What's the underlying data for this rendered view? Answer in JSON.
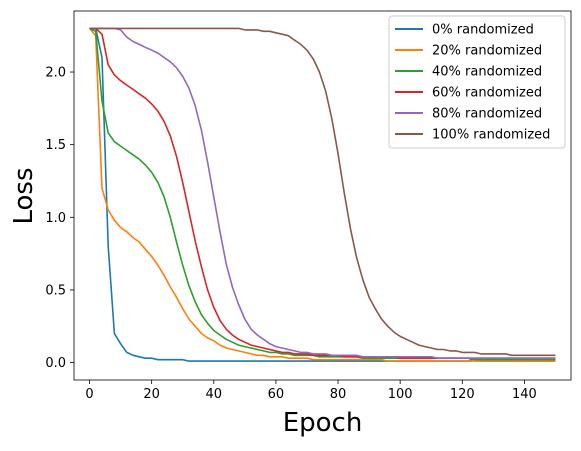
{
  "chart_data": {
    "type": "line",
    "xlabel": "Epoch",
    "ylabel": "Loss",
    "xlim": [
      -5,
      155
    ],
    "ylim": [
      -0.12,
      2.42
    ],
    "x_ticks": [
      0,
      20,
      40,
      60,
      80,
      100,
      120,
      140
    ],
    "y_ticks": [
      0.0,
      0.5,
      1.0,
      1.5,
      2.0
    ],
    "x_tick_labels": [
      "0",
      "20",
      "40",
      "60",
      "80",
      "100",
      "120",
      "140"
    ],
    "y_tick_labels": [
      "0.0",
      "0.5",
      "1.0",
      "1.5",
      "2.0"
    ],
    "grid": false,
    "legend_position": "top-right",
    "x": [
      0,
      2,
      4,
      6,
      8,
      10,
      12,
      14,
      16,
      18,
      20,
      22,
      24,
      26,
      28,
      30,
      32,
      34,
      36,
      38,
      40,
      42,
      44,
      46,
      48,
      50,
      52,
      54,
      56,
      58,
      60,
      62,
      64,
      66,
      68,
      70,
      72,
      74,
      76,
      78,
      80,
      82,
      84,
      86,
      88,
      90,
      92,
      94,
      96,
      98,
      100,
      102,
      104,
      106,
      108,
      110,
      112,
      114,
      116,
      118,
      120,
      122,
      124,
      126,
      128,
      130,
      132,
      134,
      136,
      138,
      140,
      142,
      144,
      146,
      148,
      150
    ],
    "series": [
      {
        "name": "0% randomized",
        "color": "#1f77b4",
        "values": [
          2.3,
          2.3,
          2.1,
          0.8,
          0.2,
          0.13,
          0.07,
          0.05,
          0.04,
          0.03,
          0.03,
          0.02,
          0.02,
          0.02,
          0.02,
          0.02,
          0.01,
          0.01,
          0.01,
          0.01,
          0.01,
          0.01,
          0.01,
          0.01,
          0.01,
          0.01,
          0.01,
          0.01,
          0.01,
          0.01,
          0.01,
          0.01,
          0.01,
          0.01,
          0.01,
          0.01,
          0.01,
          0.01,
          0.01,
          0.01,
          0.01,
          0.01,
          0.01,
          0.01,
          0.01,
          0.01,
          0.01,
          0.01,
          0.01,
          0.01,
          0.01,
          0.01,
          0.01,
          0.01,
          0.01,
          0.01,
          0.01,
          0.01,
          0.01,
          0.01,
          0.01,
          0.01,
          0.03,
          0.01,
          0.01,
          0.01,
          0.01,
          0.01,
          0.01,
          0.01,
          0.01,
          0.01,
          0.01,
          0.01,
          0.01,
          0.01
        ]
      },
      {
        "name": "20% randomized",
        "color": "#ff7f0e",
        "values": [
          2.3,
          2.25,
          1.2,
          1.05,
          0.98,
          0.93,
          0.9,
          0.86,
          0.83,
          0.78,
          0.73,
          0.67,
          0.6,
          0.52,
          0.45,
          0.37,
          0.3,
          0.25,
          0.2,
          0.17,
          0.15,
          0.12,
          0.1,
          0.09,
          0.08,
          0.07,
          0.06,
          0.05,
          0.05,
          0.04,
          0.04,
          0.04,
          0.03,
          0.03,
          0.03,
          0.03,
          0.02,
          0.02,
          0.02,
          0.02,
          0.02,
          0.02,
          0.02,
          0.02,
          0.02,
          0.02,
          0.02,
          0.02,
          0.01,
          0.01,
          0.01,
          0.01,
          0.01,
          0.01,
          0.01,
          0.01,
          0.01,
          0.01,
          0.01,
          0.01,
          0.01,
          0.01,
          0.01,
          0.01,
          0.01,
          0.01,
          0.01,
          0.01,
          0.01,
          0.01,
          0.01,
          0.01,
          0.01,
          0.01,
          0.01,
          0.01
        ]
      },
      {
        "name": "40% randomized",
        "color": "#2ca02c",
        "values": [
          2.3,
          2.28,
          1.8,
          1.58,
          1.52,
          1.49,
          1.46,
          1.43,
          1.4,
          1.36,
          1.31,
          1.24,
          1.14,
          1.0,
          0.83,
          0.67,
          0.53,
          0.42,
          0.33,
          0.27,
          0.22,
          0.19,
          0.16,
          0.14,
          0.12,
          0.11,
          0.1,
          0.09,
          0.08,
          0.07,
          0.07,
          0.06,
          0.06,
          0.05,
          0.05,
          0.05,
          0.05,
          0.04,
          0.04,
          0.04,
          0.04,
          0.04,
          0.04,
          0.04,
          0.03,
          0.03,
          0.03,
          0.03,
          0.03,
          0.03,
          0.03,
          0.03,
          0.03,
          0.03,
          0.03,
          0.03,
          0.03,
          0.03,
          0.03,
          0.03,
          0.03,
          0.03,
          0.02,
          0.02,
          0.02,
          0.02,
          0.02,
          0.02,
          0.02,
          0.02,
          0.02,
          0.02,
          0.02,
          0.02,
          0.02,
          0.02
        ]
      },
      {
        "name": "60% randomized",
        "color": "#d62728",
        "values": [
          2.3,
          2.3,
          2.26,
          2.05,
          1.98,
          1.94,
          1.91,
          1.88,
          1.85,
          1.82,
          1.78,
          1.73,
          1.66,
          1.56,
          1.42,
          1.24,
          1.04,
          0.84,
          0.66,
          0.5,
          0.38,
          0.29,
          0.23,
          0.19,
          0.16,
          0.14,
          0.12,
          0.11,
          0.1,
          0.09,
          0.08,
          0.07,
          0.07,
          0.06,
          0.06,
          0.06,
          0.05,
          0.05,
          0.05,
          0.05,
          0.05,
          0.04,
          0.04,
          0.04,
          0.04,
          0.04,
          0.04,
          0.04,
          0.04,
          0.04,
          0.03,
          0.03,
          0.03,
          0.03,
          0.03,
          0.03,
          0.03,
          0.03,
          0.03,
          0.03,
          0.03,
          0.03,
          0.03,
          0.03,
          0.03,
          0.03,
          0.03,
          0.03,
          0.03,
          0.03,
          0.03,
          0.03,
          0.03,
          0.03,
          0.03,
          0.03
        ]
      },
      {
        "name": "80% randomized",
        "color": "#9467bd",
        "values": [
          2.3,
          2.3,
          2.3,
          2.3,
          2.3,
          2.29,
          2.24,
          2.21,
          2.19,
          2.17,
          2.15,
          2.13,
          2.1,
          2.07,
          2.03,
          1.97,
          1.89,
          1.77,
          1.6,
          1.38,
          1.14,
          0.9,
          0.68,
          0.52,
          0.4,
          0.3,
          0.23,
          0.19,
          0.16,
          0.13,
          0.11,
          0.1,
          0.09,
          0.08,
          0.07,
          0.07,
          0.06,
          0.06,
          0.06,
          0.05,
          0.05,
          0.05,
          0.05,
          0.05,
          0.04,
          0.04,
          0.04,
          0.04,
          0.04,
          0.04,
          0.04,
          0.04,
          0.04,
          0.04,
          0.04,
          0.04,
          0.03,
          0.03,
          0.03,
          0.03,
          0.03,
          0.03,
          0.03,
          0.03,
          0.03,
          0.03,
          0.03,
          0.03,
          0.03,
          0.03,
          0.03,
          0.03,
          0.03,
          0.03,
          0.03,
          0.03
        ]
      },
      {
        "name": "100% randomized",
        "color": "#8c564b",
        "values": [
          2.3,
          2.3,
          2.3,
          2.3,
          2.3,
          2.3,
          2.3,
          2.3,
          2.3,
          2.3,
          2.3,
          2.3,
          2.3,
          2.3,
          2.3,
          2.3,
          2.3,
          2.3,
          2.3,
          2.3,
          2.3,
          2.3,
          2.3,
          2.3,
          2.3,
          2.29,
          2.29,
          2.29,
          2.28,
          2.28,
          2.27,
          2.26,
          2.25,
          2.22,
          2.19,
          2.15,
          2.09,
          2.0,
          1.87,
          1.68,
          1.44,
          1.17,
          0.92,
          0.72,
          0.57,
          0.45,
          0.37,
          0.3,
          0.25,
          0.21,
          0.18,
          0.16,
          0.14,
          0.12,
          0.11,
          0.1,
          0.09,
          0.09,
          0.08,
          0.08,
          0.07,
          0.07,
          0.07,
          0.06,
          0.06,
          0.06,
          0.06,
          0.06,
          0.05,
          0.05,
          0.05,
          0.05,
          0.05,
          0.05,
          0.05,
          0.05
        ]
      }
    ]
  }
}
